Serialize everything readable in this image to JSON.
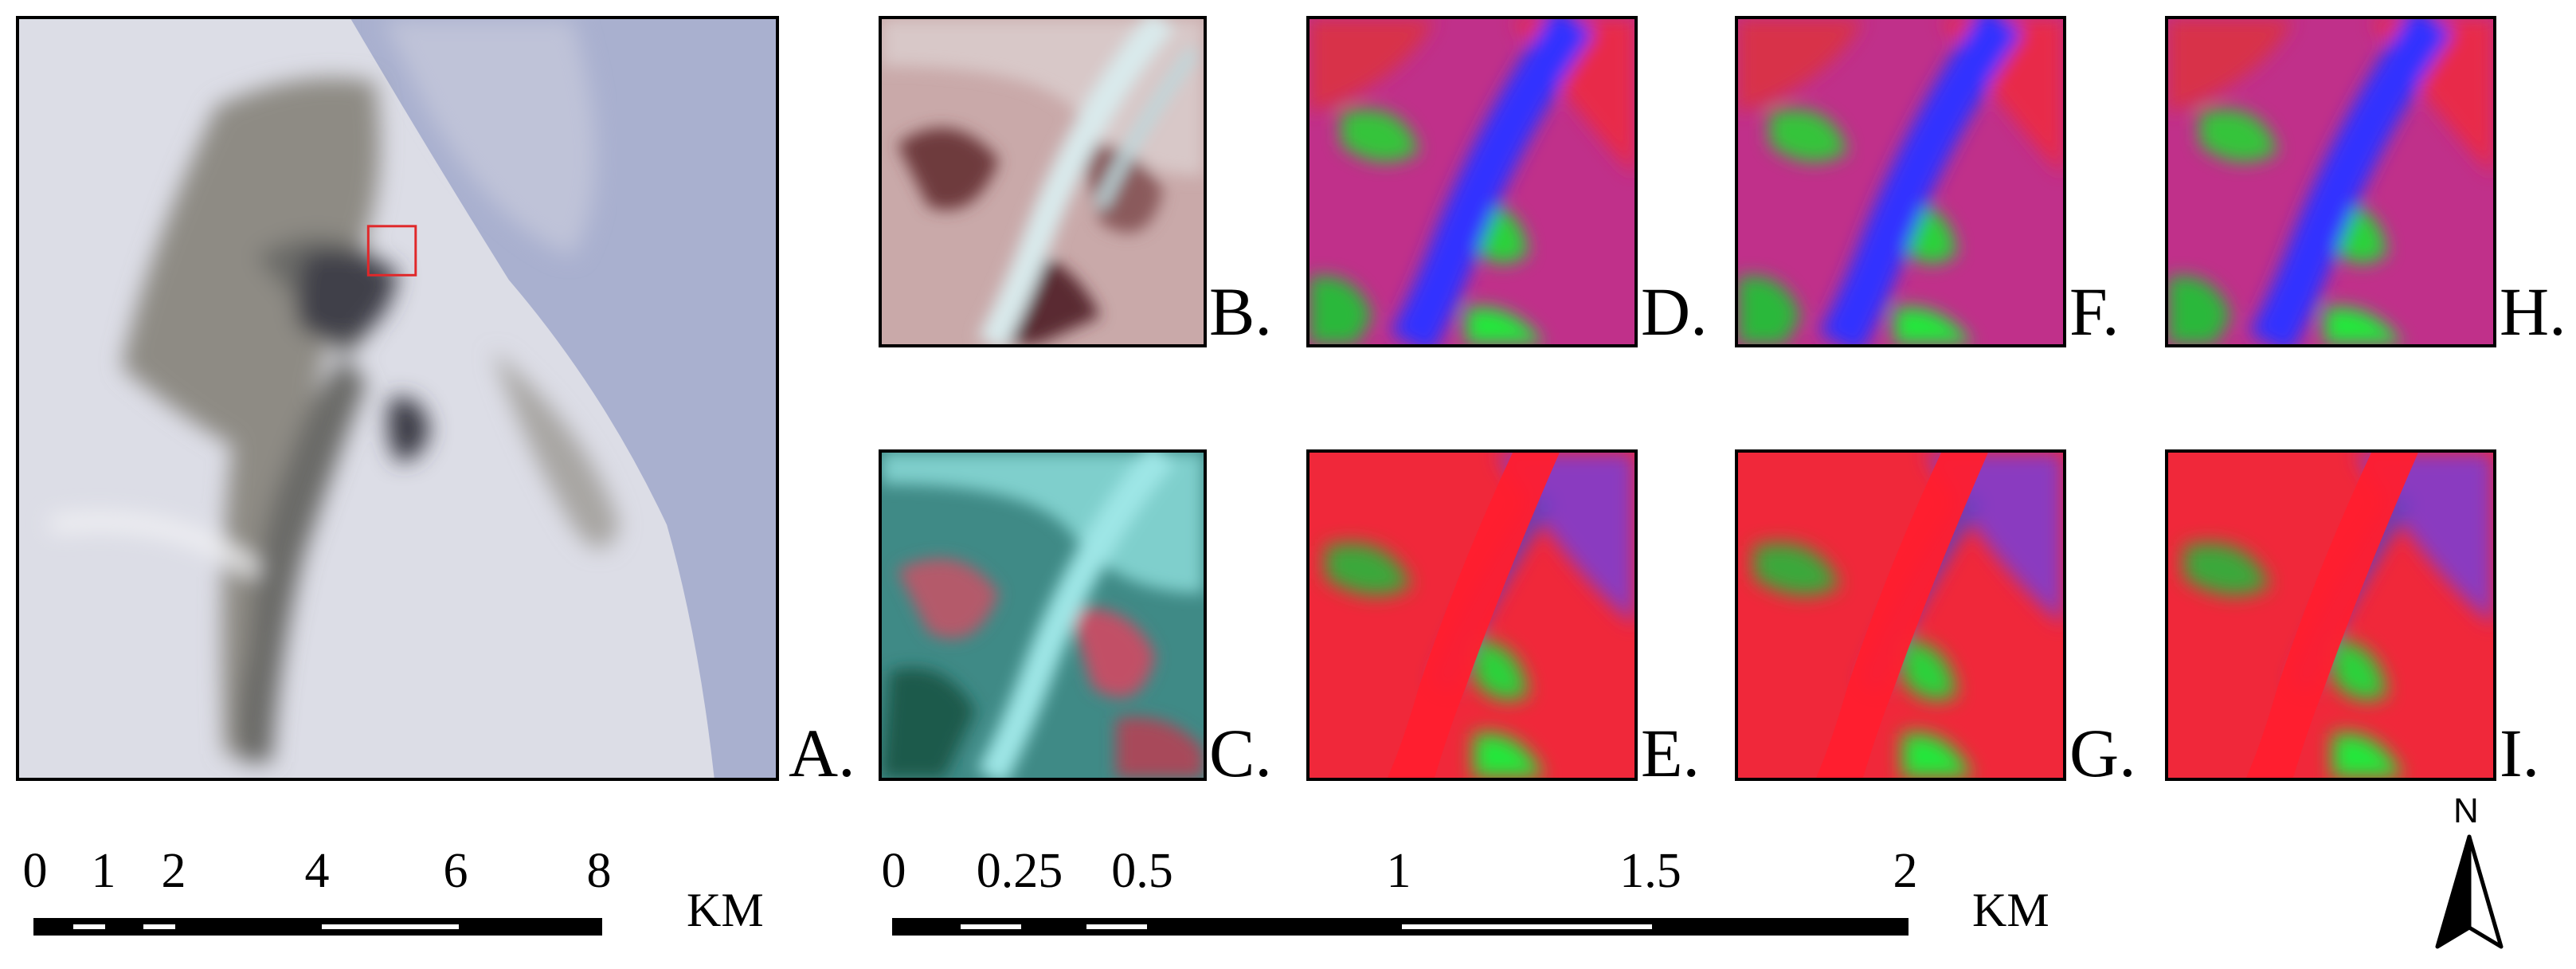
{
  "panels": {
    "a": {
      "label": "A.",
      "kind": "satellite-overview-image"
    },
    "b": {
      "label": "B.",
      "kind": "true-color-subset"
    },
    "c": {
      "label": "C.",
      "kind": "false-color-subset"
    },
    "d": {
      "label": "D.",
      "kind": "classification-result"
    },
    "e": {
      "label": "E.",
      "kind": "classification-result"
    },
    "f": {
      "label": "F.",
      "kind": "classification-result"
    },
    "g": {
      "label": "G.",
      "kind": "classification-result"
    },
    "h": {
      "label": "H.",
      "kind": "classification-result"
    },
    "i": {
      "label": "I.",
      "kind": "classification-result"
    }
  },
  "scalebar_left": {
    "ticks": [
      "0",
      "1",
      "2",
      "4",
      "6",
      "8"
    ],
    "unit": "KM"
  },
  "scalebar_right": {
    "ticks": [
      "0",
      "0.25",
      "0.5",
      "1",
      "1.5",
      "2"
    ],
    "unit": "KM"
  },
  "north_arrow": {
    "label": "N",
    "icon": "north-arrow-icon"
  },
  "colors": {
    "frame": "#000000",
    "highlight_box": "#e0282a",
    "class_red": "#ff1e2e",
    "class_blue": "#2a2aff",
    "class_green": "#22ee3a",
    "ocean": "#a9b0cf"
  }
}
